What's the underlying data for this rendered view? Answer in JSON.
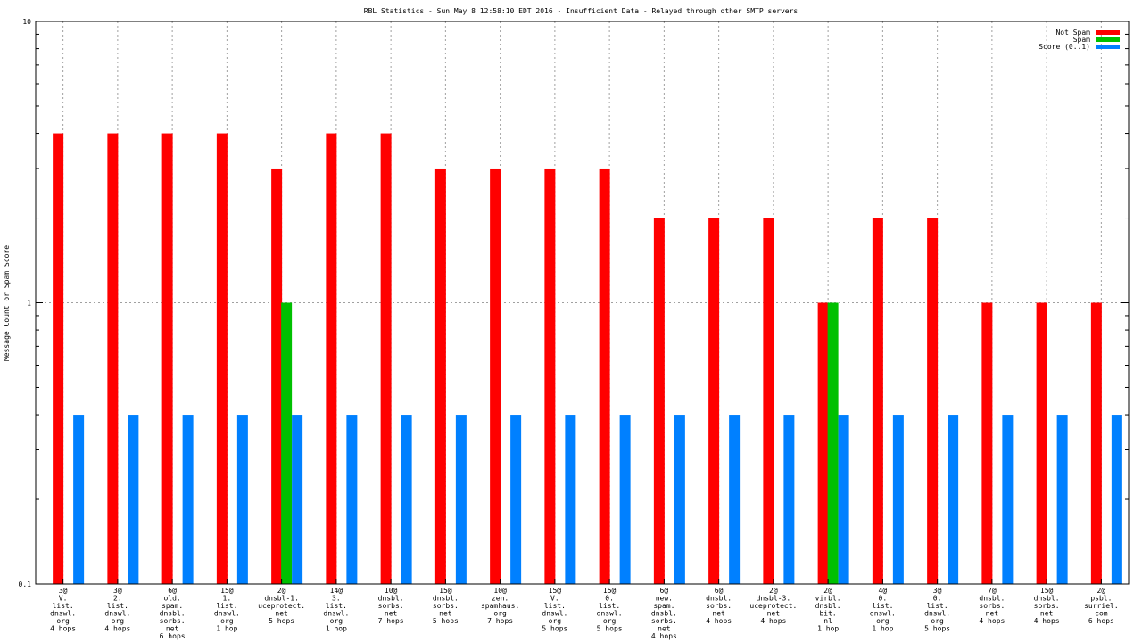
{
  "chart_data": {
    "type": "bar",
    "title": "RBL Statistics - Sun May  8 12:58:10 EDT 2016 - Insufficient Data - Relayed through other SMTP servers",
    "xlabel": "",
    "ylabel": "Message Count or Spam Score",
    "yscale": "log",
    "ylim": [
      0.1,
      10
    ],
    "yticks": [
      {
        "value": 0.1,
        "label": "0.1"
      },
      {
        "value": 1,
        "label": "1"
      },
      {
        "value": 10,
        "label": "10"
      }
    ],
    "grid": true,
    "legend_position": "top-right",
    "categories": [
      [
        "3@",
        "V.",
        "list.",
        "dnswl.",
        "org",
        "4 hops"
      ],
      [
        "3@",
        "2.",
        "list.",
        "dnswl.",
        "org",
        "4 hops"
      ],
      [
        "6@",
        "old.",
        "spam.",
        "dnsbl.",
        "sorbs.",
        "net",
        "6 hops"
      ],
      [
        "15@",
        "1.",
        "list.",
        "dnswl.",
        "org",
        "1 hop"
      ],
      [
        "2@",
        "dnsbl-1.",
        "uceprotect.",
        "net",
        "5 hops"
      ],
      [
        "14@",
        "3.",
        "list.",
        "dnswl.",
        "org",
        "1 hop"
      ],
      [
        "10@",
        "dnsbl.",
        "sorbs.",
        "net",
        "7 hops"
      ],
      [
        "15@",
        "dnsbl.",
        "sorbs.",
        "net",
        "5 hops"
      ],
      [
        "10@",
        "zen.",
        "spamhaus.",
        "org",
        "7 hops"
      ],
      [
        "15@",
        "V.",
        "list.",
        "dnswl.",
        "org",
        "5 hops"
      ],
      [
        "15@",
        "0.",
        "list.",
        "dnswl.",
        "org",
        "5 hops"
      ],
      [
        "6@",
        "new.",
        "spam.",
        "dnsbl.",
        "sorbs.",
        "net",
        "4 hops"
      ],
      [
        "6@",
        "dnsbl.",
        "sorbs.",
        "net",
        "4 hops"
      ],
      [
        "2@",
        "dnsbl-3.",
        "uceprotect.",
        "net",
        "4 hops"
      ],
      [
        "2@",
        "virbl.",
        "dnsbl.",
        "bit.",
        "nl",
        "1 hop"
      ],
      [
        "4@",
        "0.",
        "list.",
        "dnswl.",
        "org",
        "1 hop"
      ],
      [
        "3@",
        "0.",
        "list.",
        "dnswl.",
        "org",
        "5 hops"
      ],
      [
        "7@",
        "dnsbl.",
        "sorbs.",
        "net",
        "4 hops"
      ],
      [
        "15@",
        "dnsbl.",
        "sorbs.",
        "net",
        "4 hops"
      ],
      [
        "2@",
        "psbl.",
        "surriel.",
        "com",
        "6 hops"
      ]
    ],
    "series": [
      {
        "name": "Not Spam",
        "color": "#ff0000",
        "values": [
          4,
          4,
          4,
          4,
          3,
          4,
          4,
          3,
          3,
          3,
          3,
          2,
          2,
          2,
          1,
          2,
          2,
          1,
          1,
          1
        ]
      },
      {
        "name": "Spam",
        "color": "#00c000",
        "values": [
          0,
          0,
          0,
          0,
          1,
          0,
          0,
          0,
          0,
          0,
          0,
          0,
          0,
          0,
          1,
          0,
          0,
          0,
          0,
          0
        ]
      },
      {
        "name": "Score (0..1)",
        "color": "#0080ff",
        "values": [
          0.4,
          0.4,
          0.4,
          0.4,
          0.4,
          0.4,
          0.4,
          0.4,
          0.4,
          0.4,
          0.4,
          0.4,
          0.4,
          0.4,
          0.4,
          0.4,
          0.4,
          0.4,
          0.4,
          0.4
        ]
      }
    ]
  }
}
